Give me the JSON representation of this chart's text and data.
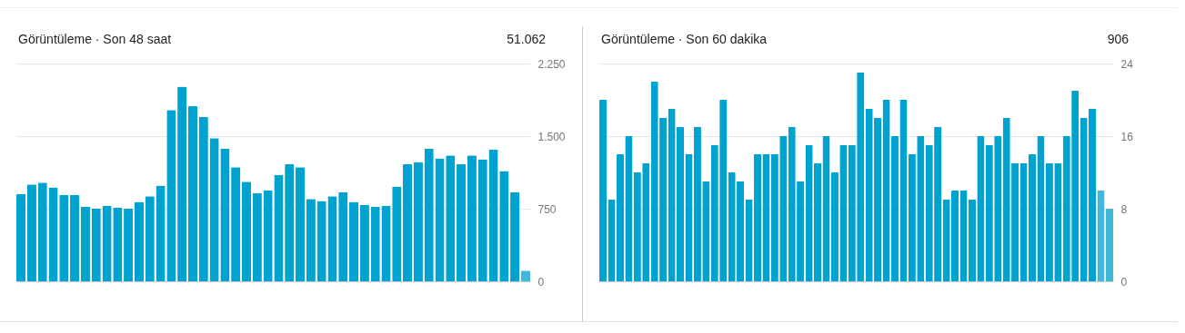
{
  "chart_data": [
    {
      "type": "bar",
      "title": "Görüntüleme · Son 48 saat",
      "annotations": [
        "51.062"
      ],
      "categories": [
        null,
        null,
        null,
        null,
        null,
        null,
        null,
        null,
        null,
        null,
        null,
        null,
        null,
        null,
        null,
        null,
        null,
        null,
        null,
        null,
        null,
        null,
        null,
        null,
        null,
        null,
        null,
        null,
        null,
        null,
        null,
        null,
        null,
        null,
        null,
        null,
        null,
        null,
        null,
        null,
        null,
        null,
        null,
        null,
        null,
        null,
        null,
        null
      ],
      "values": [
        900,
        1000,
        1020,
        970,
        890,
        890,
        770,
        750,
        780,
        760,
        750,
        820,
        880,
        990,
        1770,
        2010,
        1810,
        1700,
        1480,
        1370,
        1180,
        1030,
        910,
        940,
        1100,
        1210,
        1180,
        850,
        830,
        880,
        920,
        820,
        790,
        770,
        780,
        980,
        1210,
        1230,
        1370,
        1270,
        1300,
        1210,
        1300,
        1260,
        1360,
        1140,
        920,
        110
      ],
      "colors": [
        "#00a3cf",
        "#00a3cf",
        "#00a3cf",
        "#00a3cf",
        "#00a3cf",
        "#00a3cf",
        "#00a3cf",
        "#00a3cf",
        "#00a3cf",
        "#00a3cf",
        "#00a3cf",
        "#00a3cf",
        "#00a3cf",
        "#00a3cf",
        "#00a3cf",
        "#00a3cf",
        "#00a3cf",
        "#00a3cf",
        "#00a3cf",
        "#00a3cf",
        "#00a3cf",
        "#00a3cf",
        "#00a3cf",
        "#00a3cf",
        "#00a3cf",
        "#00a3cf",
        "#00a3cf",
        "#00a3cf",
        "#00a3cf",
        "#00a3cf",
        "#00a3cf",
        "#00a3cf",
        "#00a3cf",
        "#00a3cf",
        "#00a3cf",
        "#00a3cf",
        "#00a3cf",
        "#00a3cf",
        "#00a3cf",
        "#00a3cf",
        "#00a3cf",
        "#00a3cf",
        "#00a3cf",
        "#00a3cf",
        "#00a3cf",
        "#00a3cf",
        "#00a3cf",
        "#3fb8dc"
      ],
      "ylim": [
        0,
        2250
      ],
      "yticks": [
        0,
        750,
        {
          "value": 1500,
          "label": "1.500"
        },
        {
          "value": 2250,
          "label": "2.250"
        }
      ],
      "grid": "y",
      "tick_labels": "y"
    },
    {
      "type": "bar",
      "title": "Görüntüleme · Son 60 dakika",
      "annotations": [
        "906"
      ],
      "categories": [
        null,
        null,
        null,
        null,
        null,
        null,
        null,
        null,
        null,
        null,
        null,
        null,
        null,
        null,
        null,
        null,
        null,
        null,
        null,
        null,
        null,
        null,
        null,
        null,
        null,
        null,
        null,
        null,
        null,
        null,
        null,
        null,
        null,
        null,
        null,
        null,
        null,
        null,
        null,
        null,
        null,
        null,
        null,
        null,
        null,
        null,
        null,
        null,
        null,
        null,
        null,
        null,
        null,
        null,
        null,
        null,
        null,
        null,
        null,
        null
      ],
      "values": [
        20,
        9,
        14,
        16,
        12,
        13,
        22,
        18,
        19,
        17,
        14,
        17,
        11,
        15,
        20,
        12,
        11,
        9,
        14,
        14,
        14,
        16,
        17,
        11,
        15,
        13,
        16,
        12,
        15,
        15,
        23,
        19,
        18,
        20,
        16,
        20,
        14,
        16,
        15,
        17,
        9,
        10,
        10,
        9,
        16,
        15,
        16,
        18,
        13,
        13,
        14,
        16,
        13,
        13,
        16,
        21,
        18,
        19,
        10,
        8
      ],
      "colors": [
        "#00a3cf",
        "#00a3cf",
        "#00a3cf",
        "#00a3cf",
        "#00a3cf",
        "#00a3cf",
        "#00a3cf",
        "#00a3cf",
        "#00a3cf",
        "#00a3cf",
        "#00a3cf",
        "#00a3cf",
        "#00a3cf",
        "#00a3cf",
        "#00a3cf",
        "#00a3cf",
        "#00a3cf",
        "#00a3cf",
        "#00a3cf",
        "#00a3cf",
        "#00a3cf",
        "#00a3cf",
        "#00a3cf",
        "#00a3cf",
        "#00a3cf",
        "#00a3cf",
        "#00a3cf",
        "#00a3cf",
        "#00a3cf",
        "#00a3cf",
        "#00a3cf",
        "#00a3cf",
        "#00a3cf",
        "#00a3cf",
        "#00a3cf",
        "#00a3cf",
        "#00a3cf",
        "#00a3cf",
        "#00a3cf",
        "#00a3cf",
        "#00a3cf",
        "#00a3cf",
        "#00a3cf",
        "#00a3cf",
        "#00a3cf",
        "#00a3cf",
        "#00a3cf",
        "#00a3cf",
        "#00a3cf",
        "#00a3cf",
        "#00a3cf",
        "#00a3cf",
        "#00a3cf",
        "#00a3cf",
        "#00a3cf",
        "#00a3cf",
        "#00a3cf",
        "#00a3cf",
        "#3fb8dc",
        "#3fb8dc"
      ],
      "ylim": [
        0,
        24
      ],
      "yticks": [
        0,
        8,
        16,
        24
      ],
      "grid": "y",
      "tick_labels": "y"
    }
  ]
}
